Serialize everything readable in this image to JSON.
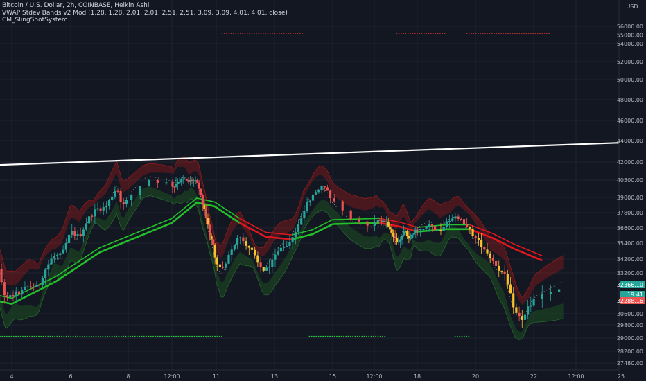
{
  "legend": {
    "line1": "Bitcoin / U.S. Dollar, 2h, COINBASE, Heikin Ashi",
    "line2": "VWAP Stdev Bands v2 Mod (1.28, 1.28, 2.01, 2.01, 2.51, 2.51, 3.09, 3.09, 4.01, 4.01, close)",
    "line3": "CM_SlingShotSystem"
  },
  "currency": "USD",
  "colors": {
    "background": "#131722",
    "grid": "#1f2330",
    "bull": "#26a69a",
    "bear": "#ef5350",
    "yellow": "#fbc02d",
    "trendline": "#ffffff",
    "ema_green": "#22c12a",
    "ema_red": "#e0161e",
    "band_red": "#8b1a1d",
    "band_green": "#1d5a22",
    "dot_green": "#27c93f",
    "dot_red": "#e53935"
  },
  "chart_data": {
    "type": "candlestick",
    "title": "Bitcoin / U.S. Dollar, 2h, COINBASE, Heikin Ashi",
    "y_tick_labels": [
      "56000.00",
      "55000.00",
      "54000.00",
      "52000.00",
      "50000.00",
      "48000.00",
      "46000.00",
      "44000.00",
      "42000.00",
      "40500.00",
      "39000.00",
      "37800.00",
      "36600.00",
      "35400.00",
      "34200.00",
      "33200.00",
      "30600.00",
      "29800.00",
      "29000.00",
      "28200.00",
      "27480.00"
    ],
    "x_tick_labels": [
      "4",
      "6",
      "8",
      "12:00",
      "11",
      "13",
      "15",
      "12:00",
      "18",
      "20",
      "22",
      "12:00",
      "25"
    ],
    "badges": [
      {
        "label": "32366.10",
        "color": "#26a69a"
      },
      {
        "label": "19:41",
        "color": "#26a69a"
      },
      {
        "label": "32288.16",
        "color": "#ef5350"
      }
    ],
    "trendline": {
      "start": {
        "day": 2.9,
        "price": 41700
      },
      "end": {
        "day": 25,
        "price": 43800
      }
    },
    "price_path": [
      {
        "day": 2.9,
        "price": 33000
      },
      {
        "day": 3.2,
        "price": 32400
      },
      {
        "day": 3.5,
        "price": 33700
      },
      {
        "day": 3.8,
        "price": 31400
      },
      {
        "day": 4.0,
        "price": 31700
      },
      {
        "day": 4.3,
        "price": 31900
      },
      {
        "day": 4.6,
        "price": 32300
      },
      {
        "day": 4.9,
        "price": 32200
      },
      {
        "day": 5.1,
        "price": 33300
      },
      {
        "day": 5.4,
        "price": 34400
      },
      {
        "day": 5.7,
        "price": 34500
      },
      {
        "day": 6.0,
        "price": 36300
      },
      {
        "day": 6.3,
        "price": 35900
      },
      {
        "day": 6.6,
        "price": 37300
      },
      {
        "day": 6.9,
        "price": 38100
      },
      {
        "day": 7.2,
        "price": 38200
      },
      {
        "day": 7.4,
        "price": 39000
      },
      {
        "day": 7.6,
        "price": 39900
      },
      {
        "day": 7.8,
        "price": 38300
      },
      {
        "day": 8.0,
        "price": 38900
      },
      {
        "day": 8.2,
        "price": 40600
      },
      {
        "day": 8.4,
        "price": 40300
      },
      {
        "day": 8.6,
        "price": 39900
      },
      {
        "day": 8.8,
        "price": 40400
      },
      {
        "day": 9.0,
        "price": 40400
      },
      {
        "day": 9.2,
        "price": 40600
      },
      {
        "day": 9.4,
        "price": 40300
      },
      {
        "day": 9.6,
        "price": 40500
      },
      {
        "day": 9.8,
        "price": 40400
      },
      {
        "day": 10.0,
        "price": 40000
      },
      {
        "day": 10.2,
        "price": 38600
      },
      {
        "day": 10.4,
        "price": 37600
      },
      {
        "day": 10.6,
        "price": 36300
      },
      {
        "day": 10.8,
        "price": 35300
      },
      {
        "day": 11.0,
        "price": 34000
      },
      {
        "day": 11.2,
        "price": 33300
      },
      {
        "day": 11.4,
        "price": 34400
      },
      {
        "day": 11.6,
        "price": 35300
      },
      {
        "day": 11.8,
        "price": 35900
      },
      {
        "day": 12.0,
        "price": 35400
      },
      {
        "day": 12.2,
        "price": 34900
      },
      {
        "day": 12.4,
        "price": 34000
      },
      {
        "day": 12.6,
        "price": 33400
      },
      {
        "day": 12.8,
        "price": 33700
      },
      {
        "day": 13.0,
        "price": 34400
      },
      {
        "day": 13.2,
        "price": 34900
      },
      {
        "day": 13.4,
        "price": 35300
      },
      {
        "day": 13.6,
        "price": 35800
      },
      {
        "day": 13.8,
        "price": 36600
      },
      {
        "day": 14.0,
        "price": 38000
      },
      {
        "day": 14.2,
        "price": 38800
      },
      {
        "day": 14.4,
        "price": 39500
      },
      {
        "day": 14.6,
        "price": 39900
      },
      {
        "day": 14.8,
        "price": 39600
      },
      {
        "day": 15.0,
        "price": 38700
      },
      {
        "day": 15.2,
        "price": 37500
      },
      {
        "day": 15.4,
        "price": 36900
      },
      {
        "day": 15.6,
        "price": 37200
      },
      {
        "day": 15.8,
        "price": 37000
      },
      {
        "day": 16.0,
        "price": 37200
      },
      {
        "day": 16.2,
        "price": 37000
      },
      {
        "day": 16.4,
        "price": 36600
      },
      {
        "day": 16.6,
        "price": 36000
      },
      {
        "day": 16.8,
        "price": 35400
      },
      {
        "day": 17.0,
        "price": 35800
      },
      {
        "day": 17.2,
        "price": 36400
      },
      {
        "day": 17.4,
        "price": 36000
      },
      {
        "day": 17.6,
        "price": 35600
      },
      {
        "day": 17.8,
        "price": 36300
      },
      {
        "day": 18.0,
        "price": 36300
      },
      {
        "day": 18.2,
        "price": 36600
      },
      {
        "day": 18.4,
        "price": 36900
      },
      {
        "day": 18.6,
        "price": 36600
      },
      {
        "day": 18.8,
        "price": 36400
      },
      {
        "day": 19.0,
        "price": 37000
      },
      {
        "day": 19.2,
        "price": 37400
      },
      {
        "day": 19.4,
        "price": 37500
      },
      {
        "day": 19.6,
        "price": 36900
      },
      {
        "day": 19.8,
        "price": 36400
      },
      {
        "day": 20.0,
        "price": 35800
      },
      {
        "day": 20.2,
        "price": 35300
      },
      {
        "day": 20.4,
        "price": 34700
      },
      {
        "day": 20.6,
        "price": 34100
      },
      {
        "day": 20.8,
        "price": 33500
      },
      {
        "day": 21.0,
        "price": 33000
      },
      {
        "day": 21.2,
        "price": 31700
      },
      {
        "day": 21.4,
        "price": 30600
      },
      {
        "day": 21.6,
        "price": 30200
      },
      {
        "day": 21.8,
        "price": 30900
      },
      {
        "day": 22.0,
        "price": 31500
      },
      {
        "day": 22.2,
        "price": 32000
      },
      {
        "day": 22.35,
        "price": 32366
      }
    ],
    "ema_segments": [
      {
        "color": "#22c12a",
        "points": [
          {
            "day": 2.9,
            "price": 31600
          },
          {
            "day": 4.0,
            "price": 31200
          },
          {
            "day": 5.5,
            "price": 32600
          },
          {
            "day": 7.0,
            "price": 34700
          },
          {
            "day": 8.5,
            "price": 37000
          },
          {
            "day": 9.9,
            "price": 38600
          },
          {
            "day": 10.9,
            "price": 38300
          },
          {
            "day": 11.8,
            "price": 37000
          }
        ]
      },
      {
        "color": "#e0161e",
        "points": [
          {
            "day": 11.8,
            "price": 37000
          },
          {
            "day": 12.7,
            "price": 35900
          },
          {
            "day": 13.6,
            "price": 35700
          }
        ]
      },
      {
        "color": "#22c12a",
        "points": [
          {
            "day": 13.6,
            "price": 35700
          },
          {
            "day": 14.3,
            "price": 36100
          },
          {
            "day": 15.0,
            "price": 36900
          },
          {
            "day": 15.8,
            "price": 37000
          }
        ]
      },
      {
        "color": "#e0161e",
        "points": [
          {
            "day": 15.8,
            "price": 37000
          },
          {
            "day": 17.0,
            "price": 36700
          },
          {
            "day": 18.0,
            "price": 36300
          }
        ]
      },
      {
        "color": "#22c12a",
        "points": [
          {
            "day": 18.0,
            "price": 36300
          },
          {
            "day": 19.0,
            "price": 36500
          },
          {
            "day": 19.8,
            "price": 36500
          }
        ]
      },
      {
        "color": "#e0161e",
        "points": [
          {
            "day": 19.8,
            "price": 36500
          },
          {
            "day": 20.6,
            "price": 35800
          },
          {
            "day": 21.3,
            "price": 35000
          },
          {
            "day": 22.1,
            "price": 34100
          }
        ]
      }
    ],
    "slingshot_dots": [
      {
        "color": "#27c93f",
        "from_day": 2.9,
        "to_day": 11.2,
        "price": 29100
      },
      {
        "color": "#e53935",
        "from_day": 11.2,
        "to_day": 14.0,
        "price": 55200
      },
      {
        "color": "#27c93f",
        "from_day": 14.2,
        "to_day": 16.2,
        "price": 29100
      },
      {
        "color": "#e53935",
        "from_day": 16.8,
        "to_day": 19.0,
        "price": 55200
      },
      {
        "color": "#27c93f",
        "from_day": 19.3,
        "to_day": 19.8,
        "price": 29100
      },
      {
        "color": "#e53935",
        "from_day": 19.7,
        "to_day": 22.2,
        "price": 55200
      }
    ]
  }
}
